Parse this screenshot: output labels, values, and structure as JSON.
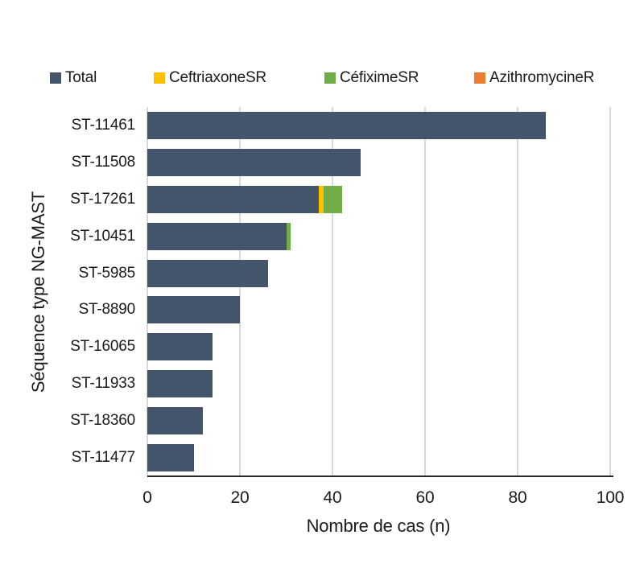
{
  "chart_data": {
    "type": "bar",
    "orientation": "horizontal",
    "stacked": true,
    "title": "",
    "xlabel": "Nombre de cas (n)",
    "ylabel": "Séquence type NG-MAST",
    "xlim": [
      0,
      100
    ],
    "xticks": [
      0,
      20,
      40,
      60,
      80,
      100
    ],
    "grid": true,
    "legend_position": "top",
    "categories": [
      "ST-11461",
      "ST-11508",
      "ST-17261",
      "ST-10451",
      "ST-5985",
      "ST-8890",
      "ST-16065",
      "ST-11933",
      "ST-18360",
      "ST-11477"
    ],
    "series": [
      {
        "name": "Total",
        "color": "#44546A",
        "values": [
          86,
          46,
          37,
          30,
          26,
          20,
          14,
          14,
          12,
          10
        ]
      },
      {
        "name": "CeftriaxoneSR",
        "color": "#FFC000",
        "values": [
          0,
          0,
          1,
          0,
          0,
          0,
          0,
          0,
          0,
          0
        ]
      },
      {
        "name": "CéfiximeSR",
        "color": "#70AD47",
        "values": [
          0,
          0,
          4,
          1,
          0,
          0,
          0,
          0,
          0,
          0
        ]
      },
      {
        "name": "AzithromycineR",
        "color": "#ED7D31",
        "values": [
          0,
          0,
          0,
          0,
          0,
          0,
          0,
          0,
          0,
          0
        ]
      }
    ],
    "bar_totals": [
      86,
      46,
      42,
      31,
      26,
      20,
      14,
      14,
      12,
      10
    ]
  },
  "colors": {
    "gridline": "#d9d9d9",
    "axis_line": "#262626",
    "text": "#1a1a1a",
    "background": "#ffffff"
  }
}
